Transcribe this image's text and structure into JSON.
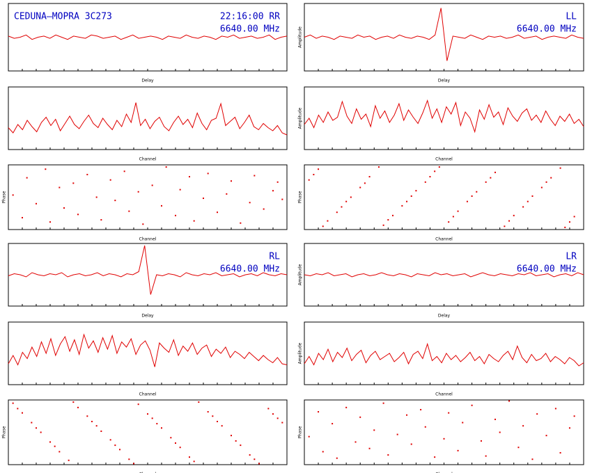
{
  "chart_data": [
    {
      "type": "line",
      "title": "CEDUNA–MOPRA 3C273",
      "label": "22:16:00  RR",
      "frequency": "6640.00 MHz",
      "x_label": "Delay",
      "color": "#e00000",
      "ylim": [
        0,
        6
      ],
      "values": [
        3.1,
        2.9,
        3.0,
        3.2,
        2.8,
        3.0,
        3.1,
        2.9,
        3.2,
        3.0,
        2.8,
        3.1,
        3.0,
        2.9,
        3.2,
        3.1,
        2.9,
        3.0,
        3.1,
        2.8,
        3.0,
        3.2,
        2.9,
        3.0,
        3.1,
        3.0,
        2.8,
        3.1,
        3.0,
        2.9,
        3.2,
        3.0,
        2.9,
        3.1,
        3.0,
        2.8,
        3.1,
        3.0,
        3.2,
        2.9,
        3.0,
        3.1,
        2.9,
        3.0,
        3.2,
        2.8,
        3.0,
        3.1
      ]
    },
    {
      "type": "line",
      "label": "LL",
      "frequency": "6640.00 MHz",
      "x_label": "Delay",
      "y_label": "Amplitude",
      "color": "#e00000",
      "ylim": [
        0,
        6
      ],
      "values": [
        3.0,
        3.2,
        2.9,
        3.1,
        3.0,
        2.8,
        3.1,
        3.0,
        2.9,
        3.2,
        3.0,
        3.1,
        2.8,
        3.0,
        3.1,
        2.9,
        3.2,
        3.0,
        2.9,
        3.1,
        3.0,
        2.8,
        3.2,
        5.6,
        0.9,
        3.1,
        3.0,
        2.9,
        3.2,
        3.0,
        2.8,
        3.1,
        3.0,
        3.1,
        2.9,
        3.0,
        3.2,
        2.9,
        3.0,
        3.1,
        2.8,
        3.0,
        3.1,
        3.0,
        2.9,
        3.2,
        3.0,
        2.9
      ]
    },
    {
      "type": "line",
      "x_label": "Channel",
      "color": "#e00000",
      "ylim": [
        0,
        6
      ],
      "values": [
        2.1,
        1.6,
        2.4,
        1.9,
        2.8,
        2.2,
        1.7,
        2.6,
        3.1,
        2.3,
        2.9,
        1.8,
        2.5,
        3.2,
        2.4,
        2.0,
        2.7,
        3.3,
        2.5,
        2.1,
        3.0,
        2.4,
        1.9,
        2.8,
        2.2,
        3.4,
        2.6,
        4.5,
        2.3,
        2.9,
        2.0,
        2.7,
        3.1,
        2.2,
        1.8,
        2.6,
        3.2,
        2.4,
        2.9,
        2.1,
        3.5,
        2.5,
        1.9,
        2.8,
        3.0,
        4.4,
        2.3,
        2.7,
        3.1,
        2.0,
        2.6,
        3.3,
        2.2,
        1.9,
        2.5,
        2.1,
        1.8,
        2.3,
        1.6,
        1.4
      ]
    },
    {
      "type": "line",
      "x_label": "Channel",
      "y_label": "Amplitude",
      "color": "#e00000",
      "ylim": [
        0,
        6
      ],
      "values": [
        2.4,
        3.0,
        2.1,
        3.3,
        2.6,
        3.6,
        2.8,
        3.1,
        4.6,
        3.2,
        2.5,
        3.9,
        2.9,
        3.4,
        2.2,
        4.2,
        3.0,
        3.7,
        2.6,
        3.3,
        4.4,
        2.8,
        3.8,
        3.1,
        2.5,
        3.5,
        4.7,
        3.0,
        3.9,
        2.6,
        4.1,
        3.4,
        4.5,
        2.3,
        3.6,
        3.0,
        1.7,
        3.8,
        2.9,
        4.3,
        3.1,
        3.6,
        2.4,
        4.0,
        3.2,
        2.7,
        3.5,
        3.9,
        2.8,
        3.3,
        2.6,
        3.7,
        2.9,
        2.3,
        3.2,
        2.7,
        3.4,
        2.5,
        2.9,
        2.2
      ]
    },
    {
      "type": "scatter",
      "x_label": "Channel",
      "y_label": "Phase",
      "color": "#e00000",
      "xlim": [
        0,
        60
      ],
      "ylim": [
        0,
        6
      ],
      "x": [
        1,
        3,
        4,
        6,
        8,
        9,
        11,
        12,
        14,
        15,
        17,
        19,
        20,
        22,
        23,
        25,
        26,
        28,
        29,
        31,
        33,
        34,
        36,
        37,
        39,
        40,
        42,
        43,
        45,
        47,
        48,
        50,
        52,
        53,
        55,
        57,
        58,
        59
      ],
      "values": [
        3.2,
        1.1,
        4.8,
        2.4,
        5.6,
        0.7,
        3.9,
        2.0,
        4.3,
        1.4,
        5.1,
        3.0,
        0.9,
        4.6,
        2.7,
        5.4,
        1.7,
        3.5,
        0.5,
        4.1,
        2.2,
        5.8,
        1.3,
        3.7,
        4.9,
        0.8,
        2.9,
        5.2,
        1.6,
        3.3,
        4.5,
        0.6,
        2.5,
        5.0,
        1.9,
        3.6,
        4.4,
        2.8
      ]
    },
    {
      "type": "scatter",
      "x_label": "Channel",
      "y_label": "Phase",
      "color": "#e00000",
      "xlim": [
        0,
        60
      ],
      "ylim": [
        0,
        6
      ],
      "x": [
        1,
        2,
        3,
        4,
        5,
        7,
        8,
        9,
        10,
        12,
        13,
        14,
        16,
        17,
        18,
        19,
        21,
        22,
        23,
        24,
        26,
        27,
        28,
        29,
        31,
        32,
        33,
        35,
        36,
        37,
        39,
        40,
        41,
        43,
        44,
        45,
        47,
        48,
        49,
        51,
        52,
        53,
        55,
        56,
        57,
        58
      ],
      "values": [
        4.6,
        5.1,
        5.6,
        0.3,
        0.8,
        1.6,
        2.1,
        2.6,
        3.0,
        3.9,
        4.3,
        4.9,
        5.8,
        0.4,
        0.9,
        1.3,
        2.2,
        2.6,
        3.1,
        3.6,
        4.4,
        4.9,
        5.4,
        5.8,
        0.7,
        1.2,
        1.7,
        2.6,
        3.1,
        3.5,
        4.4,
        4.8,
        5.3,
        0.3,
        0.8,
        1.3,
        2.1,
        2.6,
        3.1,
        3.9,
        4.4,
        4.8,
        5.7,
        0.2,
        0.7,
        1.2
      ]
    },
    {
      "type": "line",
      "label": "RL",
      "frequency": "6640.00 MHz",
      "x_label": "Delay",
      "color": "#e00000",
      "ylim": [
        0,
        6
      ],
      "values": [
        2.9,
        3.1,
        3.0,
        2.8,
        3.2,
        3.0,
        2.9,
        3.1,
        3.0,
        3.2,
        2.8,
        3.0,
        3.1,
        2.9,
        3.0,
        3.2,
        2.9,
        3.1,
        3.0,
        2.8,
        3.1,
        3.0,
        3.3,
        5.8,
        1.1,
        3.0,
        2.9,
        3.1,
        3.0,
        2.8,
        3.2,
        3.0,
        2.9,
        3.1,
        3.0,
        3.2,
        2.9,
        3.0,
        3.1,
        2.8,
        3.0,
        3.1,
        2.9,
        3.2,
        3.0,
        2.9,
        3.1,
        3.0
      ]
    },
    {
      "type": "line",
      "label": "LR",
      "frequency": "6640.00 MHz",
      "x_label": "Delay",
      "y_label": "Amplitude",
      "color": "#e00000",
      "ylim": [
        0,
        6
      ],
      "values": [
        3.0,
        2.9,
        3.1,
        3.0,
        3.2,
        2.9,
        3.0,
        3.1,
        2.8,
        3.0,
        3.1,
        2.9,
        3.0,
        3.2,
        3.0,
        2.9,
        3.1,
        3.0,
        2.8,
        3.1,
        3.0,
        2.9,
        3.2,
        3.0,
        3.1,
        2.9,
        3.0,
        3.1,
        2.8,
        3.0,
        3.2,
        3.0,
        2.9,
        3.1,
        3.0,
        2.9,
        3.1,
        3.0,
        3.2,
        2.9,
        3.0,
        3.1,
        2.8,
        3.0,
        3.1,
        2.9,
        3.2,
        3.0
      ]
    },
    {
      "type": "line",
      "x_label": "Channel",
      "color": "#e00000",
      "ylim": [
        0,
        6
      ],
      "values": [
        2.0,
        2.8,
        1.9,
        3.1,
        2.5,
        3.6,
        2.7,
        4.1,
        3.0,
        4.4,
        2.8,
        3.9,
        4.6,
        3.2,
        4.3,
        2.9,
        4.8,
        3.5,
        4.2,
        3.1,
        4.5,
        3.4,
        4.7,
        3.0,
        4.1,
        3.6,
        4.4,
        2.9,
        3.8,
        4.2,
        3.3,
        1.7,
        4.0,
        3.5,
        3.1,
        4.3,
        2.8,
        3.7,
        3.2,
        4.0,
        2.9,
        3.5,
        3.8,
        2.7,
        3.4,
        3.0,
        3.6,
        2.6,
        3.2,
        2.9,
        2.5,
        3.1,
        2.7,
        2.3,
        2.8,
        2.4,
        2.1,
        2.6,
        2.0,
        1.9
      ]
    },
    {
      "type": "line",
      "x_label": "Channel",
      "y_label": "Amplitude",
      "color": "#e00000",
      "ylim": [
        0,
        6
      ],
      "values": [
        2.0,
        2.7,
        1.9,
        3.0,
        2.4,
        3.4,
        2.2,
        3.1,
        2.6,
        3.5,
        2.3,
        2.9,
        3.3,
        2.1,
        2.8,
        3.2,
        2.4,
        2.7,
        3.0,
        2.2,
        2.6,
        3.1,
        2.0,
        2.9,
        3.2,
        2.5,
        3.9,
        2.3,
        2.7,
        2.1,
        3.0,
        2.4,
        2.8,
        2.2,
        2.6,
        3.1,
        2.3,
        2.7,
        2.0,
        2.9,
        2.5,
        2.2,
        2.8,
        3.2,
        2.4,
        3.7,
        2.6,
        2.1,
        2.9,
        2.3,
        2.5,
        3.0,
        2.2,
        2.7,
        2.4,
        2.0,
        2.6,
        2.3,
        1.8,
        2.1
      ]
    },
    {
      "type": "scatter",
      "x_label": "Channel",
      "y_label": "Phase",
      "color": "#e00000",
      "xlim": [
        0,
        60
      ],
      "ylim": [
        0,
        6
      ],
      "x": [
        1,
        2,
        3,
        5,
        6,
        7,
        9,
        10,
        11,
        13,
        14,
        15,
        17,
        18,
        19,
        20,
        22,
        23,
        24,
        26,
        27,
        28,
        30,
        31,
        32,
        33,
        35,
        36,
        37,
        39,
        40,
        41,
        43,
        44,
        45,
        46,
        48,
        49,
        50,
        52,
        53,
        54,
        56,
        57,
        58,
        59
      ],
      "values": [
        5.7,
        5.2,
        4.8,
        3.9,
        3.4,
        3.0,
        2.1,
        1.7,
        1.2,
        0.4,
        5.8,
        5.3,
        4.5,
        4.0,
        3.6,
        3.1,
        2.3,
        1.8,
        1.4,
        0.5,
        0.1,
        5.6,
        4.7,
        4.3,
        3.8,
        3.4,
        2.5,
        2.0,
        1.6,
        0.7,
        0.3,
        5.8,
        4.9,
        4.5,
        4.0,
        3.6,
        2.7,
        2.2,
        1.8,
        0.9,
        0.5,
        0.1,
        5.2,
        4.7,
        4.3,
        3.9
      ]
    },
    {
      "type": "scatter",
      "x_label": "Channel",
      "y_label": "Phase",
      "color": "#e00000",
      "xlim": [
        0,
        60
      ],
      "ylim": [
        0,
        6
      ],
      "x": [
        1,
        3,
        4,
        6,
        7,
        9,
        11,
        12,
        14,
        15,
        17,
        18,
        20,
        22,
        23,
        25,
        26,
        28,
        30,
        31,
        33,
        34,
        36,
        38,
        39,
        41,
        42,
        44,
        46,
        47,
        49,
        50,
        52,
        54,
        55,
        57,
        58
      ],
      "values": [
        2.6,
        4.9,
        1.2,
        3.8,
        0.6,
        5.3,
        2.1,
        4.4,
        1.5,
        3.2,
        5.7,
        0.9,
        2.8,
        4.6,
        1.9,
        5.1,
        3.5,
        0.7,
        2.4,
        4.8,
        1.3,
        3.9,
        5.5,
        2.2,
        0.8,
        4.2,
        3.0,
        5.9,
        1.6,
        3.6,
        0.5,
        4.7,
        2.7,
        5.2,
        1.1,
        3.4,
        4.5
      ]
    }
  ]
}
